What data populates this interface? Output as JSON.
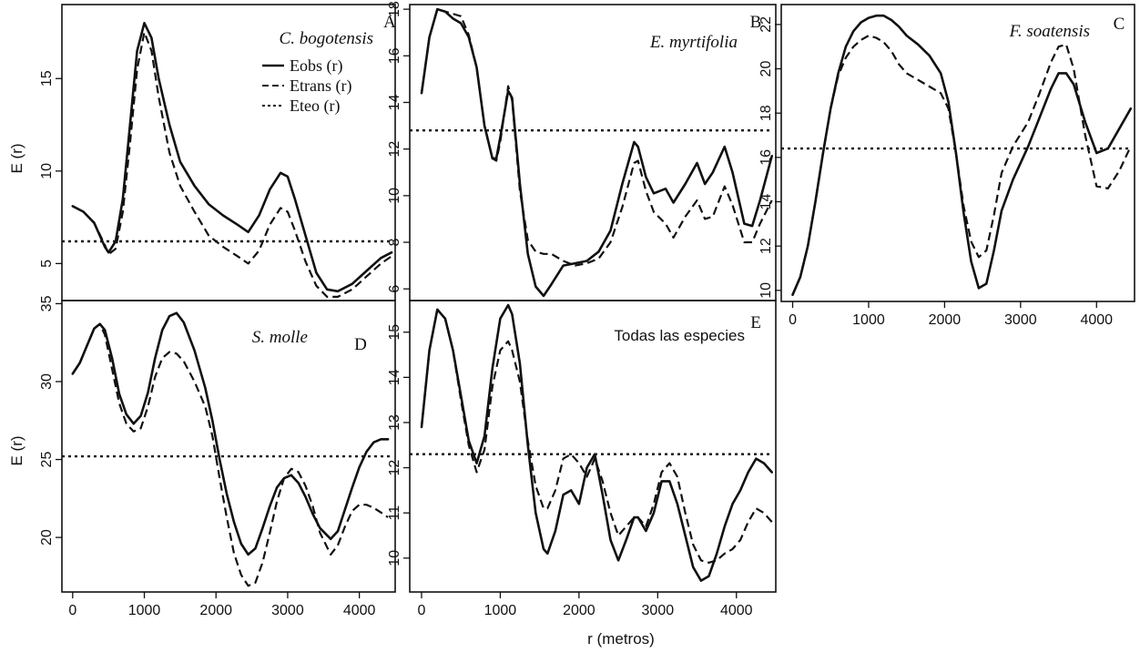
{
  "figure": {
    "x_axis_title": "r (metros)",
    "y_axis_title": "E (r)"
  },
  "legend": {
    "items": [
      {
        "label": "Eobs (r)",
        "style": "solid"
      },
      {
        "label": "Etrans (r)",
        "style": "dashed"
      },
      {
        "label": "Eteo (r)",
        "style": "dotted"
      }
    ]
  },
  "chart_data": [
    {
      "id": "A",
      "type": "line",
      "title": "C. bogotensis",
      "title_italic": true,
      "letter": "A",
      "xlim": [
        -150,
        4500
      ],
      "ylim": [
        3,
        19
      ],
      "xticks": [],
      "yticks": [
        5,
        10,
        15
      ],
      "ylabel": "E (r)",
      "series": [
        {
          "name": "Eobs (r)",
          "style": "solid",
          "x": [
            0,
            150,
            300,
            450,
            500,
            600,
            700,
            800,
            900,
            1000,
            1100,
            1200,
            1350,
            1500,
            1700,
            1900,
            2100,
            2300,
            2450,
            2600,
            2750,
            2900,
            3000,
            3100,
            3250,
            3400,
            3550,
            3700,
            3900,
            4100,
            4300,
            4450
          ],
          "y": [
            8.1,
            7.8,
            7.2,
            5.9,
            5.6,
            6.2,
            8.5,
            12.5,
            16.5,
            18.0,
            17.2,
            15.0,
            12.5,
            10.5,
            9.2,
            8.2,
            7.6,
            7.1,
            6.7,
            7.6,
            9.0,
            9.9,
            9.7,
            8.5,
            6.5,
            4.5,
            3.6,
            3.5,
            3.9,
            4.6,
            5.3,
            5.6
          ]
        },
        {
          "name": "Etrans (r)",
          "style": "dashed",
          "x": [
            0,
            150,
            300,
            450,
            500,
            600,
            700,
            800,
            900,
            1000,
            1100,
            1200,
            1350,
            1500,
            1700,
            1900,
            2100,
            2300,
            2450,
            2600,
            2750,
            2900,
            3000,
            3100,
            3250,
            3400,
            3550,
            3700,
            3900,
            4100,
            4300,
            4450
          ],
          "y": [
            8.1,
            7.8,
            7.2,
            6.0,
            5.5,
            5.8,
            7.8,
            11.5,
            15.5,
            17.5,
            16.5,
            14.0,
            11.0,
            9.2,
            7.8,
            6.5,
            5.9,
            5.4,
            5.0,
            5.7,
            7.1,
            8.0,
            7.8,
            6.8,
            5.1,
            3.8,
            3.2,
            3.2,
            3.6,
            4.3,
            5.0,
            5.4
          ]
        },
        {
          "name": "Eteo (r)",
          "style": "dotted",
          "x": [
            -150,
            4450
          ],
          "y": [
            6.2,
            6.2
          ]
        }
      ]
    },
    {
      "id": "B",
      "type": "line",
      "title": "E. myrtifolia",
      "title_italic": true,
      "letter": "B",
      "xlim": [
        -150,
        4500
      ],
      "ylim": [
        5.5,
        18.2
      ],
      "xticks": [],
      "yticks": [
        6,
        8,
        10,
        12,
        14,
        16,
        18
      ],
      "series": [
        {
          "name": "Eobs (r)",
          "style": "solid",
          "x": [
            0,
            100,
            200,
            300,
            400,
            500,
            600,
            700,
            800,
            900,
            950,
            1000,
            1100,
            1150,
            1250,
            1350,
            1450,
            1550,
            1650,
            1800,
            1950,
            2100,
            2250,
            2400,
            2550,
            2700,
            2750,
            2850,
            2950,
            3100,
            3200,
            3350,
            3500,
            3600,
            3700,
            3850,
            3950,
            4100,
            4200,
            4300,
            4450
          ],
          "y": [
            14.4,
            16.8,
            18.0,
            17.9,
            17.6,
            17.4,
            16.8,
            15.5,
            13.0,
            11.6,
            11.6,
            12.5,
            14.5,
            14.2,
            10.5,
            7.5,
            6.1,
            5.7,
            6.2,
            7.0,
            7.1,
            7.2,
            7.6,
            8.5,
            10.5,
            12.3,
            12.1,
            10.8,
            10.1,
            10.3,
            9.7,
            10.5,
            11.4,
            10.5,
            11.0,
            12.1,
            11.0,
            8.8,
            8.7,
            9.8,
            11.7
          ]
        },
        {
          "name": "Etrans (r)",
          "style": "dashed",
          "x": [
            0,
            100,
            200,
            300,
            400,
            500,
            600,
            700,
            800,
            900,
            950,
            1000,
            1100,
            1150,
            1250,
            1350,
            1450,
            1550,
            1650,
            1800,
            1950,
            2100,
            2250,
            2400,
            2550,
            2700,
            2750,
            2850,
            2950,
            3100,
            3200,
            3350,
            3500,
            3600,
            3700,
            3850,
            3950,
            4100,
            4200,
            4300,
            4450
          ],
          "y": [
            14.4,
            16.8,
            18.0,
            17.9,
            17.8,
            17.7,
            16.9,
            15.5,
            13.0,
            11.6,
            11.5,
            12.3,
            14.7,
            14.1,
            10.2,
            8.1,
            7.6,
            7.5,
            7.5,
            7.2,
            7.0,
            7.1,
            7.3,
            8.0,
            9.5,
            11.4,
            11.5,
            10.2,
            9.3,
            8.8,
            8.2,
            9.1,
            9.8,
            9.0,
            9.1,
            10.4,
            9.6,
            8.0,
            8.0,
            8.8,
            9.8
          ]
        },
        {
          "name": "Eteo (r)",
          "style": "dotted",
          "x": [
            -150,
            4450
          ],
          "y": [
            12.8,
            12.8
          ]
        }
      ]
    },
    {
      "id": "C",
      "type": "line",
      "title": "F. soatensis",
      "title_italic": true,
      "letter": "C",
      "xlim": [
        -150,
        4500
      ],
      "ylim": [
        9.5,
        22.9
      ],
      "xticks": [
        0,
        1000,
        2000,
        3000,
        4000
      ],
      "yticks": [
        10,
        12,
        14,
        16,
        18,
        20,
        22
      ],
      "series": [
        {
          "name": "Eobs (r)",
          "style": "solid",
          "x": [
            0,
            100,
            200,
            300,
            400,
            500,
            600,
            700,
            800,
            900,
            1000,
            1100,
            1200,
            1300,
            1400,
            1500,
            1650,
            1800,
            1950,
            2050,
            2150,
            2250,
            2350,
            2450,
            2550,
            2650,
            2750,
            2900,
            3100,
            3250,
            3400,
            3500,
            3600,
            3700,
            3850,
            4000,
            4150,
            4300,
            4450
          ],
          "y": [
            9.8,
            10.6,
            12.0,
            14.0,
            16.2,
            18.2,
            19.8,
            21.0,
            21.7,
            22.1,
            22.3,
            22.4,
            22.4,
            22.2,
            21.9,
            21.5,
            21.1,
            20.6,
            19.8,
            18.5,
            16.2,
            13.5,
            11.3,
            10.1,
            10.3,
            11.8,
            13.6,
            15.0,
            16.5,
            17.8,
            19.1,
            19.8,
            19.8,
            19.3,
            17.6,
            16.2,
            16.4,
            17.3,
            18.2
          ]
        },
        {
          "name": "Etrans (r)",
          "style": "dashed",
          "x": [
            0,
            100,
            200,
            300,
            400,
            500,
            600,
            700,
            800,
            900,
            1000,
            1100,
            1200,
            1300,
            1400,
            1500,
            1650,
            1800,
            1950,
            2050,
            2150,
            2250,
            2350,
            2450,
            2550,
            2650,
            2750,
            2900,
            3100,
            3250,
            3400,
            3500,
            3600,
            3700,
            3850,
            4000,
            4150,
            4300,
            4450
          ],
          "y": [
            9.8,
            10.6,
            12.0,
            14.0,
            16.2,
            18.2,
            19.7,
            20.5,
            21.0,
            21.3,
            21.5,
            21.4,
            21.2,
            20.8,
            20.2,
            19.8,
            19.5,
            19.2,
            18.9,
            18.2,
            16.2,
            13.8,
            12.2,
            11.5,
            11.8,
            13.4,
            15.3,
            16.5,
            17.6,
            18.9,
            20.3,
            21.0,
            21.1,
            20.0,
            17.0,
            14.7,
            14.6,
            15.4,
            16.5
          ]
        },
        {
          "name": "Eteo (r)",
          "style": "dotted",
          "x": [
            -150,
            4450
          ],
          "y": [
            16.4,
            16.4
          ]
        }
      ]
    },
    {
      "id": "D",
      "type": "line",
      "title": "S. molle",
      "title_italic": true,
      "letter": "D",
      "xlim": [
        -150,
        4500
      ],
      "ylim": [
        16.5,
        35.2
      ],
      "xticks": [
        0,
        1000,
        2000,
        3000,
        4000
      ],
      "yticks": [
        20,
        25,
        30,
        35
      ],
      "ylabel": "E (r)",
      "series": [
        {
          "name": "Eobs (r)",
          "style": "solid",
          "x": [
            0,
            100,
            200,
            300,
            380,
            450,
            550,
            650,
            750,
            850,
            950,
            1050,
            1150,
            1250,
            1350,
            1450,
            1550,
            1700,
            1850,
            1950,
            2050,
            2150,
            2250,
            2350,
            2450,
            2550,
            2650,
            2750,
            2850,
            2950,
            3050,
            3150,
            3250,
            3350,
            3450,
            3600,
            3700,
            3800,
            3900,
            4000,
            4100,
            4200,
            4300,
            4400
          ],
          "y": [
            30.5,
            31.2,
            32.3,
            33.4,
            33.7,
            33.3,
            31.5,
            29.2,
            27.9,
            27.3,
            27.8,
            29.3,
            31.5,
            33.3,
            34.2,
            34.4,
            33.8,
            32.0,
            29.6,
            27.5,
            25.0,
            22.8,
            21.0,
            19.6,
            18.9,
            19.3,
            20.6,
            22.0,
            23.2,
            23.8,
            24.0,
            23.5,
            22.6,
            21.5,
            20.6,
            19.9,
            20.4,
            21.8,
            23.2,
            24.5,
            25.5,
            26.1,
            26.3,
            26.3
          ]
        },
        {
          "name": "Etrans (r)",
          "style": "dashed",
          "x": [
            0,
            100,
            200,
            300,
            380,
            450,
            550,
            650,
            750,
            850,
            950,
            1050,
            1150,
            1250,
            1350,
            1450,
            1550,
            1700,
            1850,
            1950,
            2050,
            2150,
            2250,
            2350,
            2450,
            2550,
            2650,
            2750,
            2850,
            2950,
            3050,
            3150,
            3250,
            3350,
            3450,
            3600,
            3700,
            3800,
            3900,
            4000,
            4100,
            4200,
            4300,
            4400
          ],
          "y": [
            30.5,
            31.2,
            32.3,
            33.4,
            33.7,
            33.0,
            30.8,
            28.6,
            27.3,
            26.8,
            27.0,
            28.4,
            30.3,
            31.5,
            31.9,
            31.8,
            31.3,
            30.0,
            28.4,
            26.5,
            23.8,
            21.3,
            19.0,
            17.6,
            16.9,
            17.1,
            18.4,
            20.3,
            22.3,
            23.8,
            24.4,
            24.2,
            23.3,
            22.0,
            20.3,
            18.9,
            19.5,
            20.7,
            21.7,
            22.1,
            22.1,
            21.9,
            21.6,
            21.3
          ]
        },
        {
          "name": "Eteo (r)",
          "style": "dotted",
          "x": [
            -150,
            4450
          ],
          "y": [
            25.2,
            25.2
          ]
        }
      ]
    },
    {
      "id": "E",
      "type": "line",
      "title": "Todas las especies",
      "title_italic": false,
      "letter": "E",
      "xlim": [
        -150,
        4500
      ],
      "ylim": [
        9.25,
        15.7
      ],
      "xticks": [
        0,
        1000,
        2000,
        3000,
        4000
      ],
      "yticks": [
        10,
        11,
        12,
        13,
        14,
        15
      ],
      "series": [
        {
          "name": "Eobs (r)",
          "style": "solid",
          "x": [
            0,
            100,
            200,
            300,
            400,
            500,
            600,
            700,
            800,
            900,
            1000,
            1100,
            1150,
            1250,
            1350,
            1450,
            1550,
            1600,
            1700,
            1800,
            1900,
            2000,
            2100,
            2200,
            2300,
            2400,
            2500,
            2600,
            2700,
            2750,
            2850,
            2950,
            3050,
            3150,
            3250,
            3350,
            3450,
            3550,
            3650,
            3750,
            3850,
            3950,
            4050,
            4150,
            4250,
            4350,
            4450
          ],
          "y": [
            12.9,
            14.6,
            15.5,
            15.3,
            14.6,
            13.6,
            12.6,
            12.1,
            12.7,
            14.2,
            15.3,
            15.6,
            15.4,
            14.3,
            12.5,
            11.0,
            10.2,
            10.1,
            10.6,
            11.4,
            11.5,
            11.2,
            12.0,
            12.3,
            11.4,
            10.4,
            9.95,
            10.4,
            10.9,
            10.9,
            10.6,
            11.0,
            11.7,
            11.7,
            11.2,
            10.5,
            9.8,
            9.5,
            9.6,
            10.1,
            10.7,
            11.2,
            11.5,
            11.9,
            12.2,
            12.1,
            11.9
          ]
        },
        {
          "name": "Etrans (r)",
          "style": "dashed",
          "x": [
            0,
            100,
            200,
            300,
            400,
            500,
            600,
            700,
            800,
            900,
            1000,
            1100,
            1150,
            1250,
            1350,
            1450,
            1550,
            1600,
            1700,
            1800,
            1900,
            2000,
            2100,
            2200,
            2300,
            2400,
            2500,
            2600,
            2700,
            2750,
            2850,
            2950,
            3050,
            3150,
            3250,
            3350,
            3450,
            3550,
            3650,
            3750,
            3850,
            3950,
            4050,
            4150,
            4250,
            4350,
            4450
          ],
          "y": [
            12.9,
            14.6,
            15.5,
            15.3,
            14.6,
            13.5,
            12.5,
            11.9,
            12.4,
            13.8,
            14.6,
            14.8,
            14.6,
            13.9,
            12.6,
            11.6,
            11.1,
            11.1,
            11.5,
            12.2,
            12.3,
            12.1,
            11.8,
            12.2,
            11.7,
            11.0,
            10.5,
            10.7,
            10.9,
            10.9,
            10.7,
            11.2,
            11.9,
            12.1,
            11.8,
            11.0,
            10.3,
            9.95,
            9.9,
            9.95,
            10.1,
            10.2,
            10.4,
            10.8,
            11.1,
            11.0,
            10.8
          ]
        },
        {
          "name": "Eteo (r)",
          "style": "dotted",
          "x": [
            -150,
            4450
          ],
          "y": [
            12.3,
            12.3
          ]
        }
      ]
    }
  ]
}
